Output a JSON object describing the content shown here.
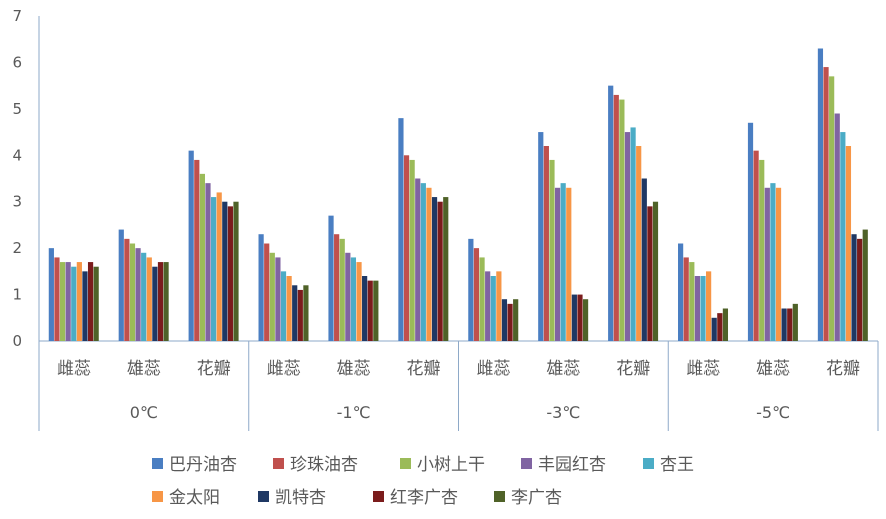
{
  "chart_data": {
    "type": "bar",
    "title": "",
    "xlabel": "",
    "ylabel": "",
    "ylim": [
      0,
      7
    ],
    "yticks": [
      0,
      1,
      2,
      3,
      4,
      5,
      6,
      7
    ],
    "grid": false,
    "legend_position": "bottom",
    "groups": [
      {
        "label": "0℃",
        "categories": [
          "雌蕊",
          "雄蕊",
          "花瓣"
        ]
      },
      {
        "label": "-1℃",
        "categories": [
          "雌蕊",
          "雄蕊",
          "花瓣"
        ]
      },
      {
        "label": "-3℃",
        "categories": [
          "雌蕊",
          "雄蕊",
          "花瓣"
        ]
      },
      {
        "label": "-5℃",
        "categories": [
          "雌蕊",
          "雄蕊",
          "花瓣"
        ]
      }
    ],
    "series": [
      {
        "name": "巴丹油杏",
        "color": "#4A7EC2",
        "values": [
          2.0,
          2.4,
          4.1,
          2.3,
          2.7,
          4.8,
          2.2,
          4.5,
          5.5,
          2.1,
          4.7,
          6.3
        ]
      },
      {
        "name": "珍珠油杏",
        "color": "#C0504D",
        "values": [
          1.8,
          2.2,
          3.9,
          2.1,
          2.3,
          4.0,
          2.0,
          4.2,
          5.3,
          1.8,
          4.1,
          5.9
        ]
      },
      {
        "name": "小树上干",
        "color": "#9BBB59",
        "values": [
          1.7,
          2.1,
          3.6,
          1.9,
          2.2,
          3.9,
          1.8,
          3.9,
          5.2,
          1.7,
          3.9,
          5.7
        ]
      },
      {
        "name": "丰园红杏",
        "color": "#8064A2",
        "values": [
          1.7,
          2.0,
          3.4,
          1.8,
          1.9,
          3.5,
          1.5,
          3.3,
          4.5,
          1.4,
          3.3,
          4.9
        ]
      },
      {
        "name": "杏王",
        "color": "#4BACC6",
        "values": [
          1.6,
          1.9,
          3.1,
          1.5,
          1.8,
          3.4,
          1.4,
          3.4,
          4.6,
          1.4,
          3.4,
          4.5
        ]
      },
      {
        "name": "金太阳",
        "color": "#F79646",
        "values": [
          1.7,
          1.8,
          3.2,
          1.4,
          1.7,
          3.3,
          1.5,
          3.3,
          4.2,
          1.5,
          3.3,
          4.2
        ]
      },
      {
        "name": "凯特杏",
        "color": "#1F3864",
        "values": [
          1.5,
          1.6,
          3.0,
          1.2,
          1.4,
          3.1,
          0.9,
          1.0,
          3.5,
          0.5,
          0.7,
          2.3
        ]
      },
      {
        "name": "红李广杏",
        "color": "#7B1C1C",
        "values": [
          1.7,
          1.7,
          2.9,
          1.1,
          1.3,
          3.0,
          0.8,
          1.0,
          2.9,
          0.6,
          0.7,
          2.2
        ]
      },
      {
        "name": "李广杏",
        "color": "#4F6228",
        "values": [
          1.6,
          1.7,
          3.0,
          1.2,
          1.3,
          3.1,
          0.9,
          0.9,
          3.0,
          0.7,
          0.8,
          2.4
        ]
      }
    ]
  }
}
